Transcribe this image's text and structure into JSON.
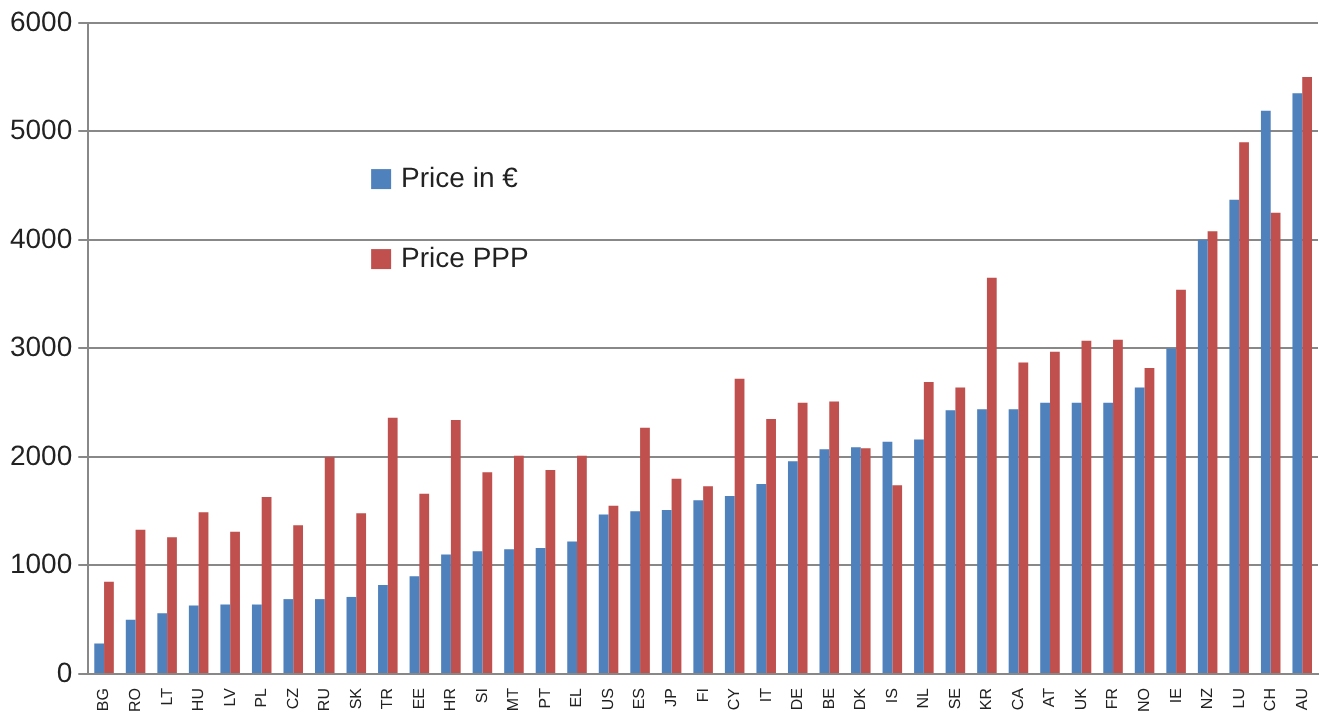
{
  "chart_data": {
    "type": "bar",
    "categories": [
      "BG",
      "RO",
      "LT",
      "HU",
      "LV",
      "PL",
      "CZ",
      "RU",
      "SK",
      "TR",
      "EE",
      "HR",
      "SI",
      "MT",
      "PT",
      "EL",
      "US",
      "ES",
      "JP",
      "FI",
      "CY",
      "IT",
      "DE",
      "BE",
      "DK",
      "IS",
      "NL",
      "SE",
      "KR",
      "CA",
      "AT",
      "UK",
      "FR",
      "NO",
      "IE",
      "NZ",
      "LU",
      "CH",
      "AU"
    ],
    "series": [
      {
        "name": "Price in €",
        "color": "#4f81bd",
        "values": [
          280,
          500,
          560,
          630,
          640,
          640,
          690,
          690,
          710,
          820,
          900,
          1100,
          1130,
          1150,
          1160,
          1220,
          1470,
          1500,
          1510,
          1600,
          1640,
          1750,
          1960,
          2070,
          2090,
          2140,
          2160,
          2430,
          2440,
          2440,
          2500,
          2500,
          2500,
          2640,
          3000,
          4000,
          4370,
          5190,
          5350
        ]
      },
      {
        "name": "Price PPP",
        "color": "#c0504d",
        "values": [
          850,
          1330,
          1260,
          1490,
          1310,
          1630,
          1370,
          2000,
          1480,
          2360,
          1660,
          2340,
          1860,
          2010,
          1880,
          2010,
          1550,
          2270,
          1800,
          1730,
          2720,
          2350,
          2500,
          2510,
          2080,
          1740,
          2690,
          2640,
          3650,
          2870,
          2970,
          3070,
          3080,
          2820,
          3540,
          4080,
          4900,
          4250,
          5500
        ]
      }
    ],
    "ylim": [
      0,
      6000
    ],
    "yticks": [
      0,
      1000,
      2000,
      3000,
      4000,
      5000,
      6000
    ],
    "grid": "y",
    "legend": "top left"
  }
}
